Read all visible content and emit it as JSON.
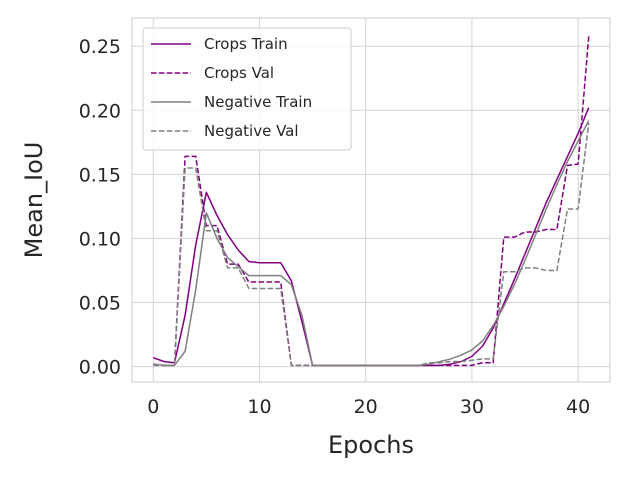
{
  "chart_data": {
    "type": "line",
    "title": "",
    "xlabel": "Epochs",
    "ylabel": "Mean_IoU",
    "xlim": [
      -2,
      43
    ],
    "ylim": [
      -0.012,
      0.272
    ],
    "xticks": [
      0,
      10,
      20,
      30,
      40
    ],
    "yticks": [
      0.0,
      0.05,
      0.1,
      0.15,
      0.2,
      0.25
    ],
    "ytick_labels": [
      "0.00",
      "0.05",
      "0.10",
      "0.15",
      "0.20",
      "0.25"
    ],
    "grid": true,
    "legend_position": "upper-left",
    "x": [
      0,
      1,
      2,
      3,
      4,
      5,
      6,
      7,
      8,
      9,
      10,
      11,
      12,
      13,
      14,
      15,
      16,
      17,
      18,
      19,
      20,
      21,
      22,
      23,
      24,
      25,
      26,
      27,
      28,
      29,
      30,
      31,
      32,
      33,
      34,
      35,
      36,
      37,
      38,
      39,
      40,
      41
    ],
    "series": [
      {
        "name": "Crops Train",
        "color": "#800080",
        "dash": "solid",
        "values": [
          0.007,
          0.004,
          0.003,
          0.04,
          0.095,
          0.136,
          0.118,
          0.103,
          0.091,
          0.082,
          0.081,
          0.081,
          0.081,
          0.067,
          0.035,
          0.001,
          0.001,
          0.001,
          0.001,
          0.001,
          0.001,
          0.001,
          0.001,
          0.001,
          0.001,
          0.001,
          0.001,
          0.001,
          0.002,
          0.004,
          0.008,
          0.016,
          0.03,
          0.049,
          0.068,
          0.088,
          0.108,
          0.128,
          0.146,
          0.164,
          0.182,
          0.202
        ]
      },
      {
        "name": "Crops Val",
        "color": "#800080",
        "dash": "dashed",
        "values": [
          0.002,
          0.001,
          0.001,
          0.164,
          0.164,
          0.11,
          0.11,
          0.08,
          0.08,
          0.066,
          0.066,
          0.066,
          0.066,
          0.001,
          0.001,
          0.001,
          0.001,
          0.001,
          0.001,
          0.001,
          0.001,
          0.001,
          0.001,
          0.001,
          0.001,
          0.001,
          0.001,
          0.001,
          0.001,
          0.001,
          0.001,
          0.003,
          0.003,
          0.101,
          0.101,
          0.105,
          0.105,
          0.107,
          0.107,
          0.157,
          0.158,
          0.258
        ]
      },
      {
        "name": "Negative Train",
        "color": "#808080",
        "dash": "solid",
        "values": [
          0.002,
          0.001,
          0.001,
          0.012,
          0.06,
          0.12,
          0.1,
          0.085,
          0.078,
          0.071,
          0.071,
          0.071,
          0.071,
          0.064,
          0.04,
          0.001,
          0.001,
          0.001,
          0.001,
          0.001,
          0.001,
          0.001,
          0.001,
          0.001,
          0.001,
          0.001,
          0.002,
          0.004,
          0.006,
          0.009,
          0.013,
          0.02,
          0.032,
          0.047,
          0.064,
          0.083,
          0.103,
          0.123,
          0.142,
          0.16,
          0.176,
          0.192
        ]
      },
      {
        "name": "Negative Val",
        "color": "#808080",
        "dash": "dashed",
        "values": [
          0.001,
          0.001,
          0.001,
          0.155,
          0.155,
          0.106,
          0.106,
          0.077,
          0.077,
          0.061,
          0.061,
          0.061,
          0.061,
          0.001,
          0.001,
          0.001,
          0.001,
          0.001,
          0.001,
          0.001,
          0.001,
          0.001,
          0.001,
          0.001,
          0.001,
          0.001,
          0.003,
          0.003,
          0.004,
          0.004,
          0.005,
          0.006,
          0.006,
          0.074,
          0.074,
          0.077,
          0.077,
          0.075,
          0.075,
          0.123,
          0.123,
          0.19
        ]
      }
    ]
  }
}
